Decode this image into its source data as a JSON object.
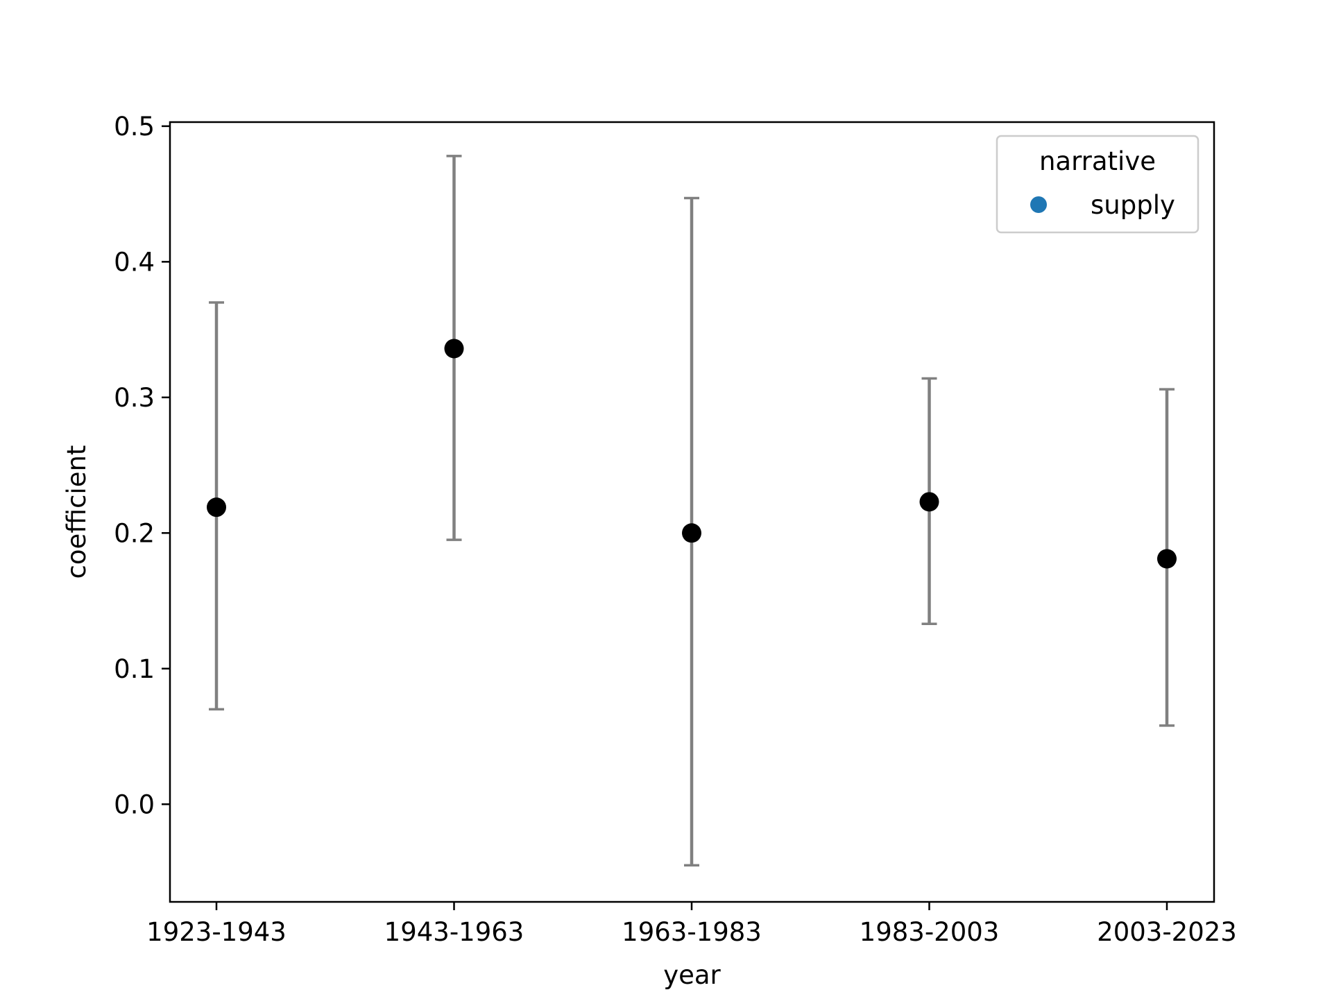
{
  "chart_data": {
    "type": "scatter",
    "categories": [
      "1923-1943",
      "1943-1963",
      "1963-1983",
      "1983-2003",
      "2003-2023"
    ],
    "values": [
      0.219,
      0.336,
      0.2,
      0.223,
      0.181
    ],
    "error_low": [
      0.07,
      0.195,
      -0.045,
      0.133,
      0.058
    ],
    "error_high": [
      0.37,
      0.478,
      0.447,
      0.314,
      0.306
    ],
    "xlabel": "year",
    "ylabel": "coefficient",
    "ylim": [
      -0.072,
      0.503
    ],
    "yticks": [
      "0.0",
      "0.1",
      "0.2",
      "0.3",
      "0.4",
      "0.5"
    ],
    "legend": {
      "title": "narrative",
      "entries": [
        {
          "label": "supply",
          "color": "#1f77b4"
        }
      ],
      "position": "top-right"
    },
    "colors": {
      "point": "#000000",
      "errorbar": "#808080",
      "axis": "#000000"
    },
    "grid": false
  }
}
